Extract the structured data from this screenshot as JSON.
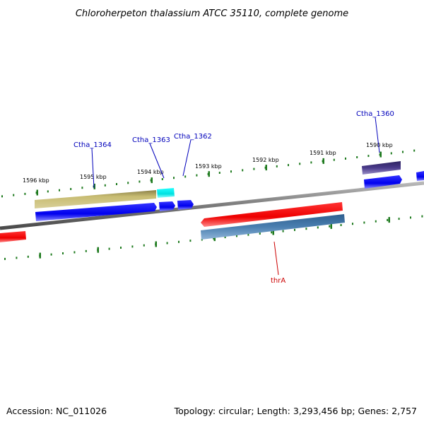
{
  "title": "Chloroherpeton thalassium ATCC 35110, complete genome",
  "footer": {
    "accession": "Accession: NC_011026",
    "summary": "Topology: circular; Length: 3,293,456 bp; Genes: 2,757"
  },
  "colors": {
    "backbone": "#8a8a8a",
    "tick": "#1e7a1e",
    "label_blue": "#0000bb",
    "label_red": "#cc0000",
    "cds_blue": "#0000ee",
    "cds_red": "#ee0000",
    "cds_olive": "#c0b468",
    "cds_cyan": "#00eeee",
    "cds_steel": "#4a7fb0",
    "cds_purple": "#4a3a8a"
  },
  "ticks": [
    {
      "label": "1596 kbp",
      "kbp": 1596
    },
    {
      "label": "1595 kbp",
      "kbp": 1595
    },
    {
      "label": "1594 kbp",
      "kbp": 1594
    },
    {
      "label": "1593 kbp",
      "kbp": 1593
    },
    {
      "label": "1592 kbp",
      "kbp": 1592
    },
    {
      "label": "1591 kbp",
      "kbp": 1591
    },
    {
      "label": "1590 kbp",
      "kbp": 1590
    }
  ],
  "gene_labels": [
    {
      "name": "ctha-1364",
      "text": "Ctha_1364",
      "color": "#0000bb"
    },
    {
      "name": "ctha-1363",
      "text": "Ctha_1363",
      "color": "#0000bb"
    },
    {
      "name": "ctha-1362",
      "text": "Ctha_1362",
      "color": "#0000bb"
    },
    {
      "name": "ctha-1360",
      "text": "Ctha_1360",
      "color": "#0000bb"
    },
    {
      "name": "thra",
      "text": "thrA",
      "color": "#cc0000"
    }
  ]
}
